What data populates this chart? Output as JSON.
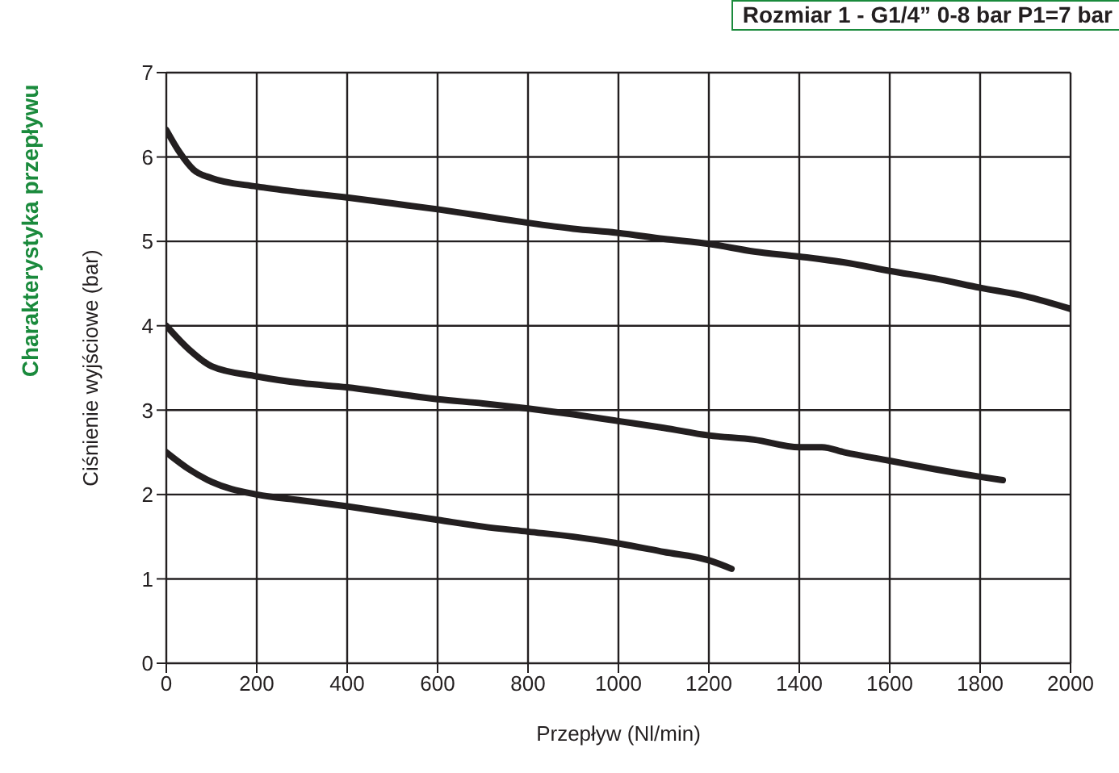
{
  "chart_data": {
    "type": "line",
    "title": "Charakterystyka przepływu",
    "subtitle": "Rozmiar 1 - G1/4” 0-8 bar P1=7 bar",
    "xlabel": "Przepływ (Nl/min)",
    "ylabel": "Ciśnienie wyjściowe (bar)",
    "xlim": [
      0,
      2000
    ],
    "xticks": [
      0,
      200,
      400,
      600,
      800,
      1000,
      1200,
      1400,
      1600,
      1800,
      2000
    ],
    "ylim": [
      0,
      7
    ],
    "yticks": [
      0,
      1,
      2,
      3,
      4,
      5,
      6,
      7
    ],
    "grid": true,
    "marker": "none",
    "line_style": "solid",
    "series": [
      {
        "color": "#231f20",
        "x": [
          0,
          30,
          60,
          100,
          200,
          300,
          400,
          500,
          600,
          700,
          800,
          900,
          1000,
          1100,
          1200,
          1300,
          1400,
          1500,
          1600,
          1700,
          1800,
          1900,
          2000
        ],
        "values": [
          6.32,
          6.05,
          5.85,
          5.75,
          5.65,
          5.58,
          5.52,
          5.45,
          5.38,
          5.3,
          5.22,
          5.15,
          5.1,
          5.03,
          4.97,
          4.88,
          4.82,
          4.75,
          4.65,
          4.56,
          4.45,
          4.35,
          4.2
        ]
      },
      {
        "color": "#231f20",
        "x": [
          0,
          50,
          100,
          200,
          300,
          400,
          500,
          600,
          700,
          800,
          900,
          1000,
          1100,
          1200,
          1300,
          1400,
          1450,
          1500,
          1600,
          1700,
          1800,
          1850
        ],
        "values": [
          4,
          3.72,
          3.52,
          3.4,
          3.32,
          3.27,
          3.2,
          3.13,
          3.08,
          3.02,
          2.95,
          2.87,
          2.79,
          2.7,
          2.65,
          2.56,
          2.56,
          2.5,
          2.4,
          2.3,
          2.21,
          2.17
        ]
      },
      {
        "color": "#231f20",
        "x": [
          0,
          50,
          100,
          200,
          300,
          400,
          500,
          600,
          700,
          800,
          900,
          1000,
          1100,
          1200,
          1250
        ],
        "values": [
          2.5,
          2.3,
          2.15,
          2,
          1.93,
          1.86,
          1.78,
          1.7,
          1.62,
          1.56,
          1.5,
          1.42,
          1.32,
          1.22,
          1.12
        ]
      }
    ]
  }
}
